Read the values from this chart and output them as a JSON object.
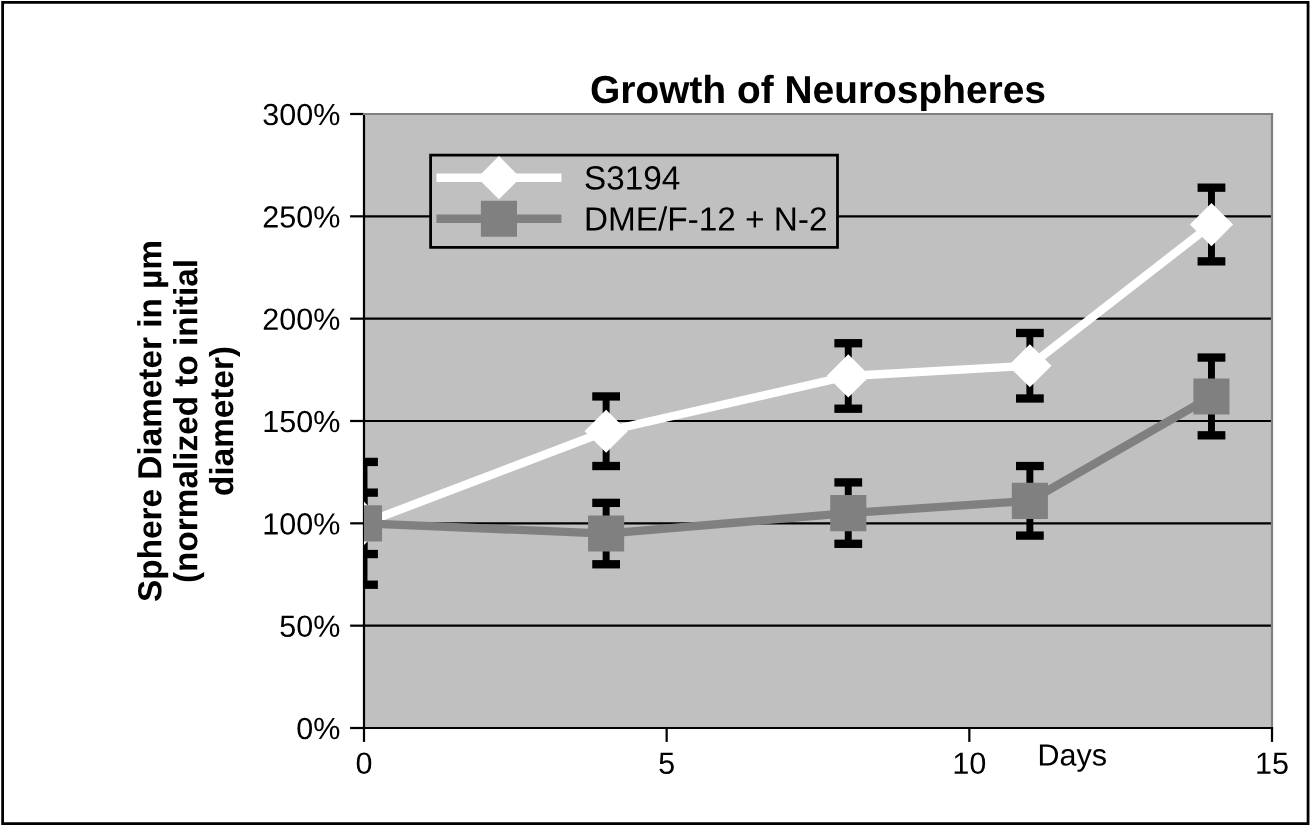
{
  "chart_data": {
    "type": "line",
    "title": "Growth of Neurospheres",
    "xlabel": "Days",
    "ylabel": "Sphere Diameter in µm\n(normalized to initial\ndiameter)",
    "series": [
      {
        "name": "S3194",
        "color": "#ffffff",
        "marker": "diamond",
        "x": [
          0,
          4,
          8,
          11,
          14
        ],
        "values": [
          100,
          145,
          172,
          177,
          246
        ],
        "errors": [
          15,
          17,
          16,
          16,
          18
        ]
      },
      {
        "name": "DME/F-12 + N-2",
        "color": "#808080",
        "marker": "square",
        "x": [
          0,
          4,
          8,
          11,
          14
        ],
        "values": [
          100,
          95,
          105,
          111,
          162
        ],
        "errors": [
          30,
          15,
          15,
          17,
          19
        ]
      }
    ],
    "xlim": [
      0,
      15
    ],
    "xticks": [
      0,
      5,
      10,
      15
    ],
    "ylim": [
      0,
      300
    ],
    "yticks": [
      {
        "value": 0,
        "label": "0%"
      },
      {
        "value": 50,
        "label": "50%"
      },
      {
        "value": 100,
        "label": "100%"
      },
      {
        "value": 150,
        "label": "150%"
      },
      {
        "value": 200,
        "label": "200%"
      },
      {
        "value": 250,
        "label": "250%"
      },
      {
        "value": 300,
        "label": "300%"
      }
    ],
    "grid": "y",
    "legend": "top left"
  }
}
